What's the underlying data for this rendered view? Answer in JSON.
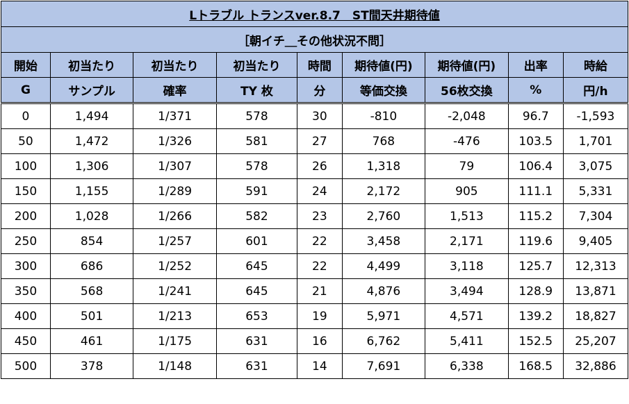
{
  "title": "Lトラブル トランスver.8.7　ST間天井期待値",
  "subtitle": "［朝イチ＿その他状況不問］",
  "headers": [
    [
      "開始",
      "G"
    ],
    [
      "初当たり",
      "サンプル"
    ],
    [
      "初当たり",
      "確率"
    ],
    [
      "初当たり",
      "TY 枚"
    ],
    [
      "時間",
      "分"
    ],
    [
      "期待値(円)",
      "等価交換"
    ],
    [
      "期待値(円)",
      "56枚交換"
    ],
    [
      "出率",
      "%"
    ],
    [
      "時給",
      "円/h"
    ]
  ],
  "colors": {
    "header_bg": "#b4c6e7",
    "negative": "#c00000",
    "positive": "#1f1fb0"
  },
  "chart_data": {
    "type": "table",
    "title": "Lトラブル トランスver.8.7　ST間天井期待値",
    "subtitle": "［朝イチ＿その他状況不問］",
    "columns": [
      "開始G",
      "初当たりサンプル",
      "初当たり確率",
      "初当たりTY 枚",
      "時間分",
      "期待値(円)等価交換",
      "期待値(円)56枚交換",
      "出率%",
      "時給円/h"
    ],
    "rows": [
      [
        "0",
        "1,494",
        "1/371",
        "578",
        "30",
        "-810",
        "-2,048",
        "96.7",
        "-1,593"
      ],
      [
        "50",
        "1,472",
        "1/326",
        "581",
        "27",
        "768",
        "-476",
        "103.5",
        "1,701"
      ],
      [
        "100",
        "1,306",
        "1/307",
        "578",
        "26",
        "1,318",
        "79",
        "106.4",
        "3,075"
      ],
      [
        "150",
        "1,155",
        "1/289",
        "591",
        "24",
        "2,172",
        "905",
        "111.1",
        "5,331"
      ],
      [
        "200",
        "1,028",
        "1/266",
        "582",
        "23",
        "2,760",
        "1,513",
        "115.2",
        "7,304"
      ],
      [
        "250",
        "854",
        "1/257",
        "601",
        "22",
        "3,458",
        "2,171",
        "119.6",
        "9,405"
      ],
      [
        "300",
        "686",
        "1/252",
        "645",
        "22",
        "4,499",
        "3,118",
        "125.7",
        "12,313"
      ],
      [
        "350",
        "568",
        "1/241",
        "645",
        "21",
        "4,876",
        "3,494",
        "128.9",
        "13,871"
      ],
      [
        "400",
        "501",
        "1/213",
        "653",
        "19",
        "5,971",
        "4,571",
        "139.2",
        "18,827"
      ],
      [
        "450",
        "461",
        "1/175",
        "631",
        "16",
        "6,762",
        "5,411",
        "152.5",
        "25,207"
      ],
      [
        "500",
        "378",
        "1/148",
        "631",
        "14",
        "7,691",
        "6,338",
        "168.5",
        "32,886"
      ]
    ]
  }
}
